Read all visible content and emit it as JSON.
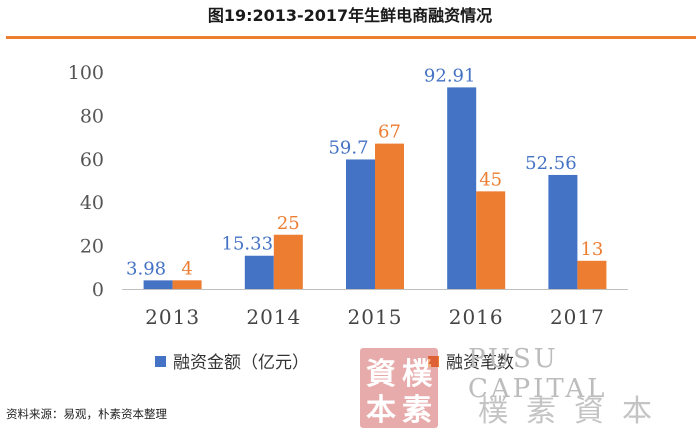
{
  "header": {
    "title": "图19:2013-2017年生鲜电商融资情况"
  },
  "chart_data": {
    "type": "bar",
    "title": "",
    "xlabel": "",
    "ylabel": "",
    "categories": [
      "2013",
      "2014",
      "2015",
      "2016",
      "2017"
    ],
    "ylim": [
      0,
      100
    ],
    "yticks": [
      0,
      20,
      40,
      60,
      80,
      100
    ],
    "grid": false,
    "legend_position": "bottom",
    "series": [
      {
        "name": "融资金额（亿元）",
        "color": "#4472C4",
        "values": [
          3.98,
          15.33,
          59.7,
          92.91,
          52.56
        ],
        "labels": [
          "3.98",
          "15.33",
          "59.7",
          "92.91",
          "52.56"
        ]
      },
      {
        "name": "融资笔数",
        "color": "#ED7D31",
        "values": [
          4,
          25,
          67,
          45,
          13
        ],
        "labels": [
          "4",
          "25",
          "67",
          "45",
          "13"
        ]
      }
    ]
  },
  "footer": {
    "source": "资料来源：易观，朴素资本整理"
  },
  "watermark": {
    "seal_chars": [
      "資",
      "樸",
      "本",
      "素"
    ],
    "english": "PUSU CAPITAL",
    "chinese": "樸素資本"
  }
}
